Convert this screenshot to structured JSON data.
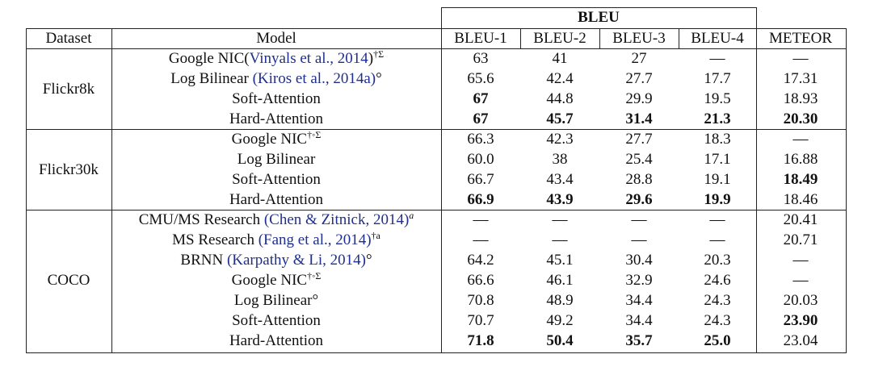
{
  "table": {
    "group_header": "BLEU",
    "columns": [
      "Dataset",
      "Model",
      "BLEU-1",
      "BLEU-2",
      "BLEU-3",
      "BLEU-4",
      "METEOR"
    ],
    "groups": [
      {
        "dataset": "Flickr8k",
        "rows": [
          {
            "model": [
              {
                "t": "Google NIC("
              },
              {
                "t": "Vinyals et al., 2014",
                "cite": true
              },
              {
                "t": ")"
              },
              {
                "t": "†Σ",
                "sup": true
              }
            ],
            "values": [
              "63",
              "41",
              "27",
              "—",
              "—"
            ],
            "bold": [
              false,
              false,
              false,
              false,
              false
            ]
          },
          {
            "model": [
              {
                "t": "Log Bilinear "
              },
              {
                "t": "(Kiros et al., 2014a)",
                "cite": true
              },
              {
                "t": "°"
              }
            ],
            "values": [
              "65.6",
              "42.4",
              "27.7",
              "17.7",
              "17.31"
            ],
            "bold": [
              false,
              false,
              false,
              false,
              false
            ]
          },
          {
            "model": [
              {
                "t": "Soft-Attention"
              }
            ],
            "values": [
              "67",
              "44.8",
              "29.9",
              "19.5",
              "18.93"
            ],
            "bold": [
              true,
              false,
              false,
              false,
              false
            ]
          },
          {
            "model": [
              {
                "t": "Hard-Attention"
              }
            ],
            "values": [
              "67",
              "45.7",
              "31.4",
              "21.3",
              "20.30"
            ],
            "bold": [
              true,
              true,
              true,
              true,
              true
            ]
          }
        ]
      },
      {
        "dataset": "Flickr30k",
        "rows": [
          {
            "model": [
              {
                "t": "Google NIC"
              },
              {
                "t": "†◦Σ",
                "sup": true
              }
            ],
            "values": [
              "66.3",
              "42.3",
              "27.7",
              "18.3",
              "—"
            ],
            "bold": [
              false,
              false,
              false,
              false,
              false
            ]
          },
          {
            "model": [
              {
                "t": "Log Bilinear"
              }
            ],
            "values": [
              "60.0",
              "38",
              "25.4",
              "17.1",
              "16.88"
            ],
            "bold": [
              false,
              false,
              false,
              false,
              false
            ]
          },
          {
            "model": [
              {
                "t": "Soft-Attention"
              }
            ],
            "values": [
              "66.7",
              "43.4",
              "28.8",
              "19.1",
              "18.49"
            ],
            "bold": [
              false,
              false,
              false,
              false,
              true
            ]
          },
          {
            "model": [
              {
                "t": "Hard-Attention"
              }
            ],
            "values": [
              "66.9",
              "43.9",
              "29.6",
              "19.9",
              "18.46"
            ],
            "bold": [
              true,
              true,
              true,
              true,
              false
            ]
          }
        ]
      },
      {
        "dataset": "COCO",
        "rows": [
          {
            "model": [
              {
                "t": "CMU/MS Research "
              },
              {
                "t": "(Chen & Zitnick, 2014)",
                "cite": true
              },
              {
                "t": "a",
                "sup": true,
                "italic": true
              }
            ],
            "values": [
              "—",
              "—",
              "—",
              "—",
              "20.41"
            ],
            "bold": [
              false,
              false,
              false,
              false,
              false
            ]
          },
          {
            "model": [
              {
                "t": "MS Research "
              },
              {
                "t": "(Fang et al., 2014)",
                "cite": true
              },
              {
                "t": "†a",
                "sup": true
              }
            ],
            "values": [
              "—",
              "—",
              "—",
              "—",
              "20.71"
            ],
            "bold": [
              false,
              false,
              false,
              false,
              false
            ]
          },
          {
            "model": [
              {
                "t": "BRNN "
              },
              {
                "t": "(Karpathy & Li, 2014)",
                "cite": true
              },
              {
                "t": "°"
              }
            ],
            "values": [
              "64.2",
              "45.1",
              "30.4",
              "20.3",
              "—"
            ],
            "bold": [
              false,
              false,
              false,
              false,
              false
            ]
          },
          {
            "model": [
              {
                "t": "Google NIC"
              },
              {
                "t": "†◦Σ",
                "sup": true
              }
            ],
            "values": [
              "66.6",
              "46.1",
              "32.9",
              "24.6",
              "—"
            ],
            "bold": [
              false,
              false,
              false,
              false,
              false
            ]
          },
          {
            "model": [
              {
                "t": "Log Bilinear"
              },
              {
                "t": "°"
              }
            ],
            "values": [
              "70.8",
              "48.9",
              "34.4",
              "24.3",
              "20.03"
            ],
            "bold": [
              false,
              false,
              false,
              false,
              false
            ]
          },
          {
            "model": [
              {
                "t": "Soft-Attention"
              }
            ],
            "values": [
              "70.7",
              "49.2",
              "34.4",
              "24.3",
              "23.90"
            ],
            "bold": [
              false,
              false,
              false,
              false,
              true
            ]
          },
          {
            "model": [
              {
                "t": "Hard-Attention"
              }
            ],
            "values": [
              "71.8",
              "50.4",
              "35.7",
              "25.0",
              "23.04"
            ],
            "bold": [
              true,
              true,
              true,
              true,
              false
            ]
          }
        ]
      }
    ]
  }
}
